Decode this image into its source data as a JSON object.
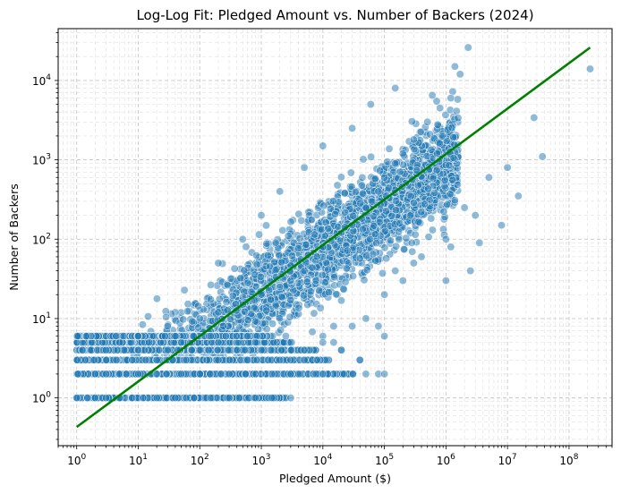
{
  "chart_data": {
    "type": "scatter",
    "title": "Log-Log Fit: Pledged Amount vs. Number of Backers (2024)",
    "xlabel": "Pledged Amount ($)",
    "ylabel": "Number of Backers",
    "x_scale": "log",
    "y_scale": "log",
    "xlim": [
      0.5,
      500000000
    ],
    "ylim": [
      0.25,
      45000
    ],
    "x_ticks": [
      {
        "base": "10",
        "exp": "0"
      },
      {
        "base": "10",
        "exp": "1"
      },
      {
        "base": "10",
        "exp": "2"
      },
      {
        "base": "10",
        "exp": "3"
      },
      {
        "base": "10",
        "exp": "4"
      },
      {
        "base": "10",
        "exp": "5"
      },
      {
        "base": "10",
        "exp": "6"
      },
      {
        "base": "10",
        "exp": "7"
      },
      {
        "base": "10",
        "exp": "8"
      }
    ],
    "y_ticks": [
      {
        "base": "10",
        "exp": "0"
      },
      {
        "base": "10",
        "exp": "1"
      },
      {
        "base": "10",
        "exp": "2"
      },
      {
        "base": "10",
        "exp": "3"
      },
      {
        "base": "10",
        "exp": "4"
      }
    ],
    "grid": true,
    "grid_style": "dashed",
    "point_color": "#1f77b4",
    "fit_color": "#008000",
    "fit_line": {
      "x": [
        1,
        220000000
      ],
      "y": [
        0.43,
        26000
      ]
    },
    "points_sample": [
      [
        1,
        1
      ],
      [
        1.5,
        1
      ],
      [
        2,
        1
      ],
      [
        3,
        1
      ],
      [
        5,
        1
      ],
      [
        8,
        1
      ],
      [
        12,
        1
      ],
      [
        20,
        1
      ],
      [
        40,
        1
      ],
      [
        80,
        1
      ],
      [
        150,
        1
      ],
      [
        300,
        1
      ],
      [
        800,
        1
      ],
      [
        1500,
        1
      ],
      [
        3000,
        1
      ],
      [
        2,
        2
      ],
      [
        3,
        2
      ],
      [
        5,
        2
      ],
      [
        10,
        2
      ],
      [
        20,
        2
      ],
      [
        50,
        2
      ],
      [
        100,
        2
      ],
      [
        300,
        2
      ],
      [
        1000,
        2
      ],
      [
        3000,
        2
      ],
      [
        10000,
        2
      ],
      [
        50000,
        2
      ],
      [
        80000,
        2
      ],
      [
        3,
        3
      ],
      [
        8,
        3
      ],
      [
        20,
        3
      ],
      [
        60,
        3
      ],
      [
        200,
        3
      ],
      [
        600,
        3
      ],
      [
        2000,
        3
      ],
      [
        8000,
        3
      ],
      [
        40000,
        3
      ],
      [
        3,
        4
      ],
      [
        10,
        4
      ],
      [
        30,
        4
      ],
      [
        100,
        4
      ],
      [
        300,
        4
      ],
      [
        1000,
        4
      ],
      [
        5000,
        4
      ],
      [
        20000,
        4
      ],
      [
        5,
        5
      ],
      [
        15,
        5
      ],
      [
        50,
        5
      ],
      [
        200,
        5
      ],
      [
        800,
        5
      ],
      [
        3000,
        5
      ],
      [
        15000,
        5
      ],
      [
        10,
        6
      ],
      [
        40,
        6
      ],
      [
        150,
        6
      ],
      [
        600,
        6
      ],
      [
        2500,
        6
      ],
      [
        10000,
        6
      ],
      [
        30,
        8
      ],
      [
        100,
        10
      ],
      [
        200,
        12
      ],
      [
        500,
        15
      ],
      [
        1000,
        20
      ],
      [
        2000,
        25
      ],
      [
        3000,
        30
      ],
      [
        5000,
        40
      ],
      [
        8000,
        60
      ],
      [
        10000,
        80
      ],
      [
        20000,
        120
      ],
      [
        30000,
        150
      ],
      [
        50000,
        250
      ],
      [
        80000,
        400
      ],
      [
        100000,
        600
      ],
      [
        150000,
        900
      ],
      [
        200000,
        1200
      ],
      [
        300000,
        1800
      ],
      [
        500000,
        3000
      ],
      [
        800000,
        4500
      ],
      [
        1200000,
        6000
      ],
      [
        200,
        50
      ],
      [
        500,
        100
      ],
      [
        1000,
        200
      ],
      [
        2000,
        400
      ],
      [
        5000,
        800
      ],
      [
        10000,
        1500
      ],
      [
        30000,
        2500
      ],
      [
        60000,
        5000
      ],
      [
        150000,
        8000
      ],
      [
        1500,
        2
      ],
      [
        3000,
        3
      ],
      [
        10000,
        5
      ],
      [
        30000,
        8
      ],
      [
        50000,
        10
      ],
      [
        100000,
        20
      ],
      [
        200000,
        30
      ],
      [
        400000,
        60
      ],
      [
        1000000,
        100
      ],
      [
        3000000,
        200
      ],
      [
        2300000,
        26000
      ],
      [
        1400000,
        15000
      ],
      [
        1700000,
        12000
      ],
      [
        600000,
        6500
      ],
      [
        220000000,
        14000
      ],
      [
        27000000,
        3400
      ],
      [
        37000000,
        1100
      ],
      [
        10000000,
        800
      ],
      [
        5000000,
        600
      ],
      [
        15000000,
        350
      ],
      [
        2000000,
        250
      ],
      [
        3500000,
        90
      ],
      [
        2500000,
        40
      ],
      [
        1200000,
        80
      ],
      [
        8000000,
        150
      ],
      [
        1000000,
        30
      ],
      [
        300000,
        50
      ],
      [
        150000,
        40
      ],
      [
        100000,
        2
      ],
      [
        100000,
        6
      ],
      [
        80000,
        8
      ],
      [
        40000,
        3
      ],
      [
        20000,
        4
      ],
      [
        15000,
        8
      ]
    ]
  }
}
